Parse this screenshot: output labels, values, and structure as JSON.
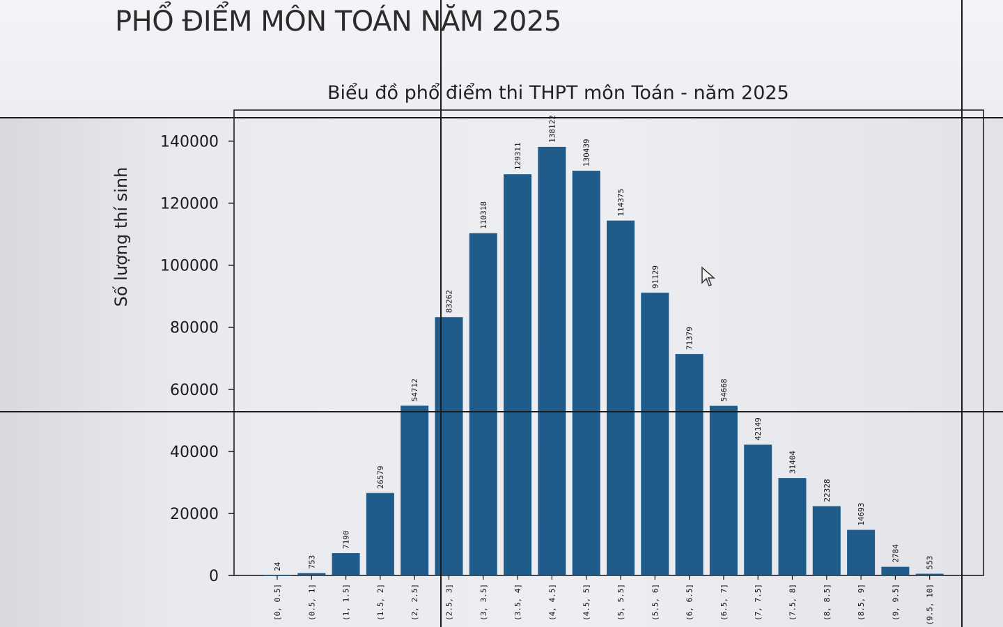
{
  "slide": {
    "title": "PHỔ ĐIỂM MÔN TOÁN NĂM 2025"
  },
  "chart_data": {
    "type": "bar",
    "title": "Biểu đồ phổ điểm thi THPT môn Toán - năm 2025",
    "xlabel": "",
    "ylabel": "Số lượng thí sinh",
    "ylim": [
      0,
      150000
    ],
    "yticks": [
      "0",
      "20000",
      "40000",
      "60000",
      "80000",
      "100000",
      "120000",
      "140000"
    ],
    "ytick_values": [
      0,
      20000,
      40000,
      60000,
      80000,
      100000,
      120000,
      140000
    ],
    "categories": [
      "[0, 0.5]",
      "(0.5, 1]",
      "(1, 1.5]",
      "(1.5, 2]",
      "(2, 2.5]",
      "(2.5, 3]",
      "(3, 3.5]",
      "(3.5, 4]",
      "(4, 4.5]",
      "(4.5, 5]",
      "(5, 5.5]",
      "(5.5, 6]",
      "(6, 6.5]",
      "(6.5, 7]",
      "(7, 7.5]",
      "(7.5, 8]",
      "(8, 8.5]",
      "(8.5, 9]",
      "(9, 9.5]",
      "(9.5, 10]"
    ],
    "values": [
      24,
      753,
      7190,
      26579,
      54712,
      83262,
      110318,
      129311,
      138122,
      130439,
      114375,
      91129,
      71379,
      54668,
      42149,
      31404,
      22328,
      14693,
      2784,
      553
    ],
    "data_labels": [
      "24",
      "753",
      "7190",
      "26579",
      "54712",
      "83262",
      "110318",
      "129311",
      "138122",
      "130439",
      "114375",
      "91129",
      "71379",
      "54668",
      "42149",
      "31404",
      "22328",
      "14693",
      "2784",
      "553"
    ],
    "bar_color": "#1f5c8b",
    "grid": false,
    "legend": "none"
  }
}
